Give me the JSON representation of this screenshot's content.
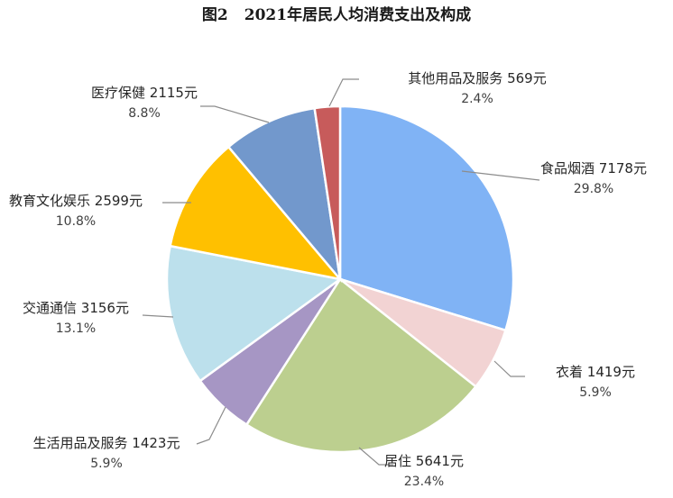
{
  "figure": {
    "number": "图2",
    "title": "2021年居民人均消费支出及构成"
  },
  "chart_data": {
    "type": "pie",
    "title": "2021年居民人均消费支出及构成",
    "unit": "元",
    "slices": [
      {
        "key": "food",
        "name": "食品烟酒",
        "value": 7178,
        "value_label": "7178元",
        "percent": 29.8,
        "percent_label": "29.8%",
        "color": "#80B3F5"
      },
      {
        "key": "clothing",
        "name": "衣着",
        "value": 1419,
        "value_label": "1419元",
        "percent": 5.9,
        "percent_label": "5.9%",
        "color": "#F2D3D3"
      },
      {
        "key": "housing",
        "name": "居住",
        "value": 5641,
        "value_label": "5641元",
        "percent": 23.4,
        "percent_label": "23.4%",
        "color": "#BCCF8F"
      },
      {
        "key": "daily-goods",
        "name": "生活用品及服务",
        "value": 1423,
        "value_label": "1423元",
        "percent": 5.9,
        "percent_label": "5.9%",
        "color": "#A696C4"
      },
      {
        "key": "transport",
        "name": "交通通信",
        "value": 3156,
        "value_label": "3156元",
        "percent": 13.1,
        "percent_label": "13.1%",
        "color": "#BCE0EC"
      },
      {
        "key": "education",
        "name": "教育文化娱乐",
        "value": 2599,
        "value_label": "2599元",
        "percent": 10.8,
        "percent_label": "10.8%",
        "color": "#FFC000"
      },
      {
        "key": "health",
        "name": "医疗保健",
        "value": 2115,
        "value_label": "2115元",
        "percent": 8.8,
        "percent_label": "8.8%",
        "color": "#7298CC"
      },
      {
        "key": "other",
        "name": "其他用品及服务",
        "value": 569,
        "value_label": "569元",
        "percent": 2.4,
        "percent_label": "2.4%",
        "color": "#C75B5B"
      }
    ]
  }
}
